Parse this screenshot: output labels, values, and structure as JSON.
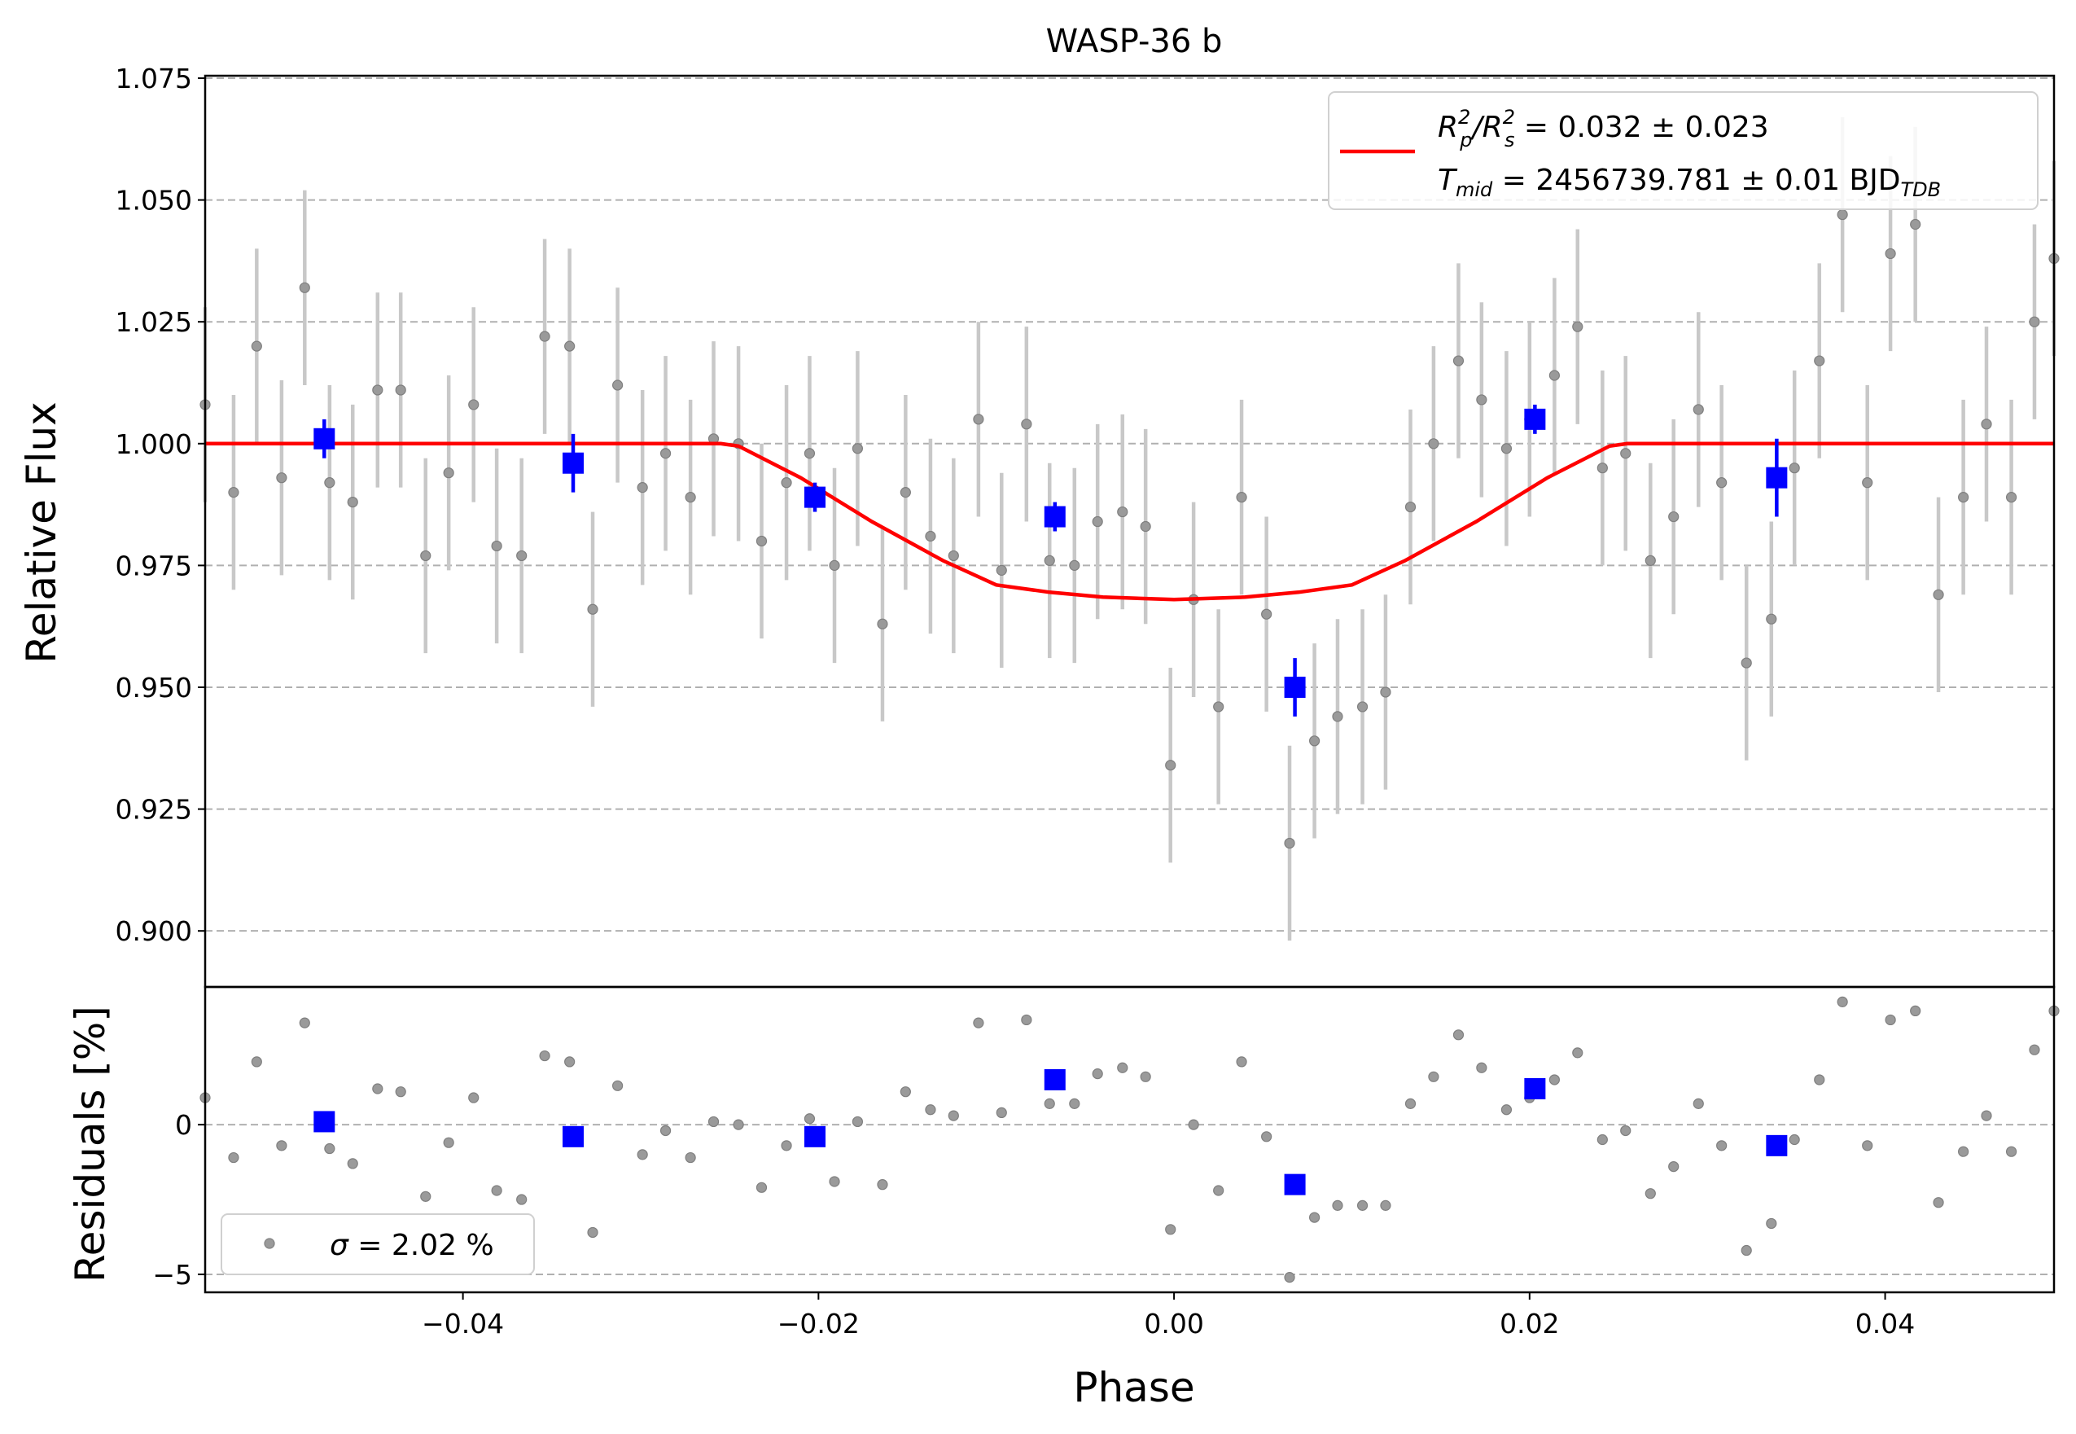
{
  "chart_data": [
    {
      "type": "scatter",
      "title": "WASP-36 b",
      "ylabel": "Relative Flux",
      "xlim": [
        -0.0545,
        0.0495
      ],
      "ylim": [
        0.8885,
        1.0755
      ],
      "yticks": [
        0.9,
        0.925,
        0.95,
        0.975,
        1.0,
        1.025,
        1.05,
        1.075
      ],
      "ytick_labels": [
        "0.900",
        "0.925",
        "0.950",
        "0.975",
        "1.000",
        "1.025",
        "1.050",
        "1.075"
      ],
      "grid": "horizontal dashed",
      "legend": {
        "placement": "top-right",
        "line1_main": "R",
        "line1_sup1": "2",
        "line1_sub1": "p",
        "line1_mid": "/R",
        "line1_sup2": "2",
        "line1_sub2": "s",
        "line1_rest": " = 0.032 ± 0.023",
        "line2_main": "T",
        "line2_sub": "mid",
        "line2_rest": " = 2456739.781 ± 0.01 BJD",
        "line2_tail_sub": "TDB"
      },
      "series": [
        {
          "kind": "raw",
          "color": "#9a9a9a",
          "yerr": 0.02,
          "x": [
            -0.0545,
            -0.0529,
            -0.0516,
            -0.0502,
            -0.0489,
            -0.0475,
            -0.0462,
            -0.0448,
            -0.0435,
            -0.0421,
            -0.0408,
            -0.0394,
            -0.0381,
            -0.0367,
            -0.0354,
            -0.034,
            -0.0327,
            -0.0313,
            -0.0299,
            -0.0286,
            -0.0272,
            -0.0259,
            -0.0245,
            -0.0232,
            -0.0218,
            -0.0205,
            -0.0191,
            -0.0178,
            -0.0164,
            -0.0151,
            -0.0137,
            -0.0124,
            -0.011,
            -0.0097,
            -0.0083,
            -0.007,
            -0.0056,
            -0.0043,
            -0.0029,
            -0.0016,
            -0.0002,
            0.0011,
            0.0025,
            0.0038,
            0.0052,
            0.0065,
            0.0079,
            0.0092,
            0.0106,
            0.0119,
            0.0133,
            0.0146,
            0.016,
            0.0173,
            0.0187,
            0.02,
            0.0214,
            0.0227,
            0.0241,
            0.0254,
            0.0268,
            0.0281,
            0.0295,
            0.0308,
            0.0322,
            0.0336,
            0.0349,
            0.0363,
            0.0376,
            0.039,
            0.0403,
            0.0417,
            0.043,
            0.0444,
            0.0457,
            0.0471,
            0.0484,
            0.0498
          ],
          "y": [
            1.008,
            0.99,
            1.02,
            0.993,
            1.032,
            0.992,
            0.988,
            1.011,
            1.011,
            0.977,
            0.994,
            1.008,
            0.979,
            0.977,
            1.022,
            1.02,
            0.966,
            1.012,
            0.991,
            0.998,
            0.989,
            1.001,
            1.0,
            0.98,
            0.992,
            0.998,
            0.975,
            0.999,
            0.963,
            0.99,
            0.981,
            0.977,
            1.005,
            0.974,
            1.004,
            0.976,
            0.975,
            0.984,
            0.986,
            0.983,
            0.934,
            0.968,
            0.946,
            0.989,
            0.965,
            0.918,
            0.939,
            0.944,
            0.946,
            0.949,
            0.987,
            1.0,
            1.017,
            1.009,
            0.999,
            1.005,
            1.014,
            1.024,
            0.995,
            0.998,
            0.976,
            0.985,
            1.007,
            0.992,
            0.955,
            0.964,
            0.995,
            1.017,
            1.047,
            0.992,
            1.039,
            1.045,
            0.969,
            0.989,
            1.004,
            0.989,
            1.025,
            1.038
          ]
        },
        {
          "kind": "binned",
          "color": "#0000ff",
          "x": [
            -0.0478,
            -0.0338,
            -0.0202,
            -0.0067,
            0.0068,
            0.0203,
            0.0339
          ],
          "y": [
            1.001,
            0.996,
            0.989,
            0.985,
            0.95,
            1.005,
            0.993
          ],
          "yerr": [
            0.004,
            0.006,
            0.003,
            0.003,
            0.006,
            0.003,
            0.008
          ]
        },
        {
          "kind": "model",
          "color": "#ff0000",
          "name": "R_p^2/R_s^2 = 0.032 ± 0.023",
          "x": [
            -0.0545,
            -0.0255,
            -0.0245,
            -0.021,
            -0.017,
            -0.013,
            -0.01,
            -0.007,
            -0.004,
            0.0,
            0.004,
            0.007,
            0.01,
            0.013,
            0.017,
            0.021,
            0.0245,
            0.0255,
            0.0495
          ],
          "y": [
            1.0,
            1.0,
            0.9995,
            0.993,
            0.984,
            0.976,
            0.971,
            0.9695,
            0.9685,
            0.968,
            0.9685,
            0.9695,
            0.971,
            0.976,
            0.984,
            0.993,
            0.9995,
            1.0,
            1.0
          ]
        }
      ]
    },
    {
      "type": "scatter",
      "xlabel": "Phase",
      "ylabel": "Residuals [%]",
      "xlim": [
        -0.0545,
        0.0495
      ],
      "ylim": [
        -5.6,
        4.6
      ],
      "xticks": [
        -0.04,
        -0.02,
        0.0,
        0.02,
        0.04
      ],
      "xtick_labels": [
        "−0.04",
        "−0.02",
        "0.00",
        "0.02",
        "0.04"
      ],
      "yticks": [
        -5,
        0
      ],
      "ytick_labels": [
        "−5",
        "0"
      ],
      "grid": "horizontal dashed",
      "legend": {
        "placement": "lower-left",
        "sigma_symbol": "σ",
        "sigma_text": " = 2.02 %"
      },
      "series": [
        {
          "kind": "raw",
          "color": "#9a9a9a",
          "x": [
            -0.0545,
            -0.0529,
            -0.0516,
            -0.0502,
            -0.0489,
            -0.0475,
            -0.0462,
            -0.0448,
            -0.0435,
            -0.0421,
            -0.0408,
            -0.0394,
            -0.0381,
            -0.0367,
            -0.0354,
            -0.034,
            -0.0327,
            -0.0313,
            -0.0299,
            -0.0286,
            -0.0272,
            -0.0259,
            -0.0245,
            -0.0232,
            -0.0218,
            -0.0205,
            -0.0191,
            -0.0178,
            -0.0164,
            -0.0151,
            -0.0137,
            -0.0124,
            -0.011,
            -0.0097,
            -0.0083,
            -0.007,
            -0.0056,
            -0.0043,
            -0.0029,
            -0.0016,
            -0.0002,
            0.0011,
            0.0025,
            0.0038,
            0.0052,
            0.0065,
            0.0079,
            0.0092,
            0.0106,
            0.0119,
            0.0133,
            0.0146,
            0.016,
            0.0173,
            0.0187,
            0.02,
            0.0214,
            0.0227,
            0.0241,
            0.0254,
            0.0268,
            0.0281,
            0.0295,
            0.0308,
            0.0322,
            0.0336,
            0.0349,
            0.0363,
            0.0376,
            0.039,
            0.0403,
            0.0417,
            0.043,
            0.0444,
            0.0457,
            0.0471,
            0.0484,
            0.0498
          ],
          "y": [
            0.9,
            -1.1,
            2.1,
            -0.7,
            3.4,
            -0.8,
            -1.3,
            1.2,
            1.1,
            -2.4,
            -0.6,
            0.9,
            -2.2,
            -2.5,
            2.3,
            2.1,
            -3.6,
            1.3,
            -1.0,
            -0.2,
            -1.1,
            0.1,
            0.0,
            -2.1,
            -0.7,
            0.2,
            -1.9,
            0.1,
            -2.0,
            1.1,
            0.5,
            0.3,
            3.4,
            0.4,
            3.5,
            0.7,
            0.7,
            1.7,
            1.9,
            1.6,
            -3.5,
            0.0,
            -2.2,
            2.1,
            -0.4,
            -5.1,
            -3.1,
            -2.7,
            -2.7,
            -2.7,
            0.7,
            1.6,
            3.0,
            1.9,
            0.5,
            0.9,
            1.5,
            2.4,
            -0.5,
            -0.2,
            -2.3,
            -1.4,
            0.7,
            -0.7,
            -4.2,
            -3.3,
            -0.5,
            1.5,
            4.1,
            -0.7,
            3.5,
            3.8,
            -2.6,
            -0.9,
            0.3,
            -0.9,
            2.5,
            3.8
          ]
        },
        {
          "kind": "binned",
          "color": "#0000ff",
          "x": [
            -0.0478,
            -0.0338,
            -0.0202,
            -0.0067,
            0.0068,
            0.0203,
            0.0339
          ],
          "y": [
            0.1,
            -0.4,
            -0.4,
            1.5,
            -2.0,
            1.2,
            -0.7
          ]
        }
      ]
    }
  ]
}
